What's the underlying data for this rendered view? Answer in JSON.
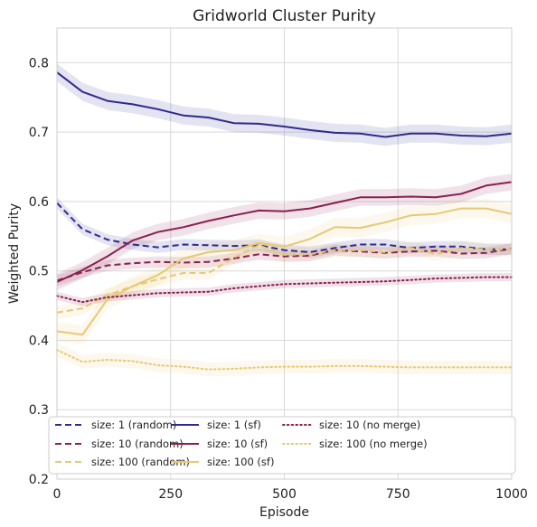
{
  "chart_data": {
    "type": "line",
    "title": "Gridworld Cluster Purity",
    "xlabel": "Episode",
    "ylabel": "Weighted Purity",
    "xlim": [
      0,
      1000
    ],
    "ylim": [
      0.2,
      0.85
    ],
    "xticks": [
      0,
      250,
      500,
      750,
      1000
    ],
    "yticks": [
      0.2,
      0.3,
      0.4,
      0.5,
      0.6,
      0.7,
      0.8
    ],
    "xtick_labels": [
      "0",
      "250",
      "500",
      "750",
      "1000"
    ],
    "ytick_labels": [
      "0.2",
      "0.3",
      "0.4",
      "0.5",
      "0.6",
      "0.7",
      "0.8"
    ],
    "grid": true,
    "legend_position": "bottom",
    "legend_columns": 3,
    "x": [
      0,
      56,
      111,
      167,
      222,
      278,
      333,
      389,
      444,
      500,
      556,
      611,
      667,
      722,
      778,
      833,
      889,
      944,
      1000
    ],
    "series": [
      {
        "name": "size: 1 (random)",
        "color": "#2f2a8f",
        "style": "dashed",
        "values": [
          0.598,
          0.56,
          0.545,
          0.538,
          0.534,
          0.538,
          0.537,
          0.536,
          0.537,
          0.53,
          0.527,
          0.533,
          0.538,
          0.538,
          0.533,
          0.535,
          0.535,
          0.531,
          0.531
        ],
        "band": 0.008
      },
      {
        "name": "size: 10 (random)",
        "color": "#8b1f4f",
        "style": "dashed",
        "values": [
          0.486,
          0.498,
          0.508,
          0.511,
          0.513,
          0.512,
          0.513,
          0.518,
          0.524,
          0.521,
          0.522,
          0.53,
          0.528,
          0.526,
          0.528,
          0.529,
          0.525,
          0.526,
          0.532
        ],
        "band": 0.008
      },
      {
        "name": "size: 100 (random)",
        "color": "#e8c873",
        "style": "dashed",
        "values": [
          0.44,
          0.446,
          0.465,
          0.478,
          0.488,
          0.497,
          0.497,
          0.519,
          0.537,
          0.523,
          0.524,
          0.53,
          0.53,
          0.527,
          0.533,
          0.524,
          0.533,
          0.531,
          0.531
        ],
        "band": 0.01
      },
      {
        "name": "size: 1 (sf)",
        "color": "#2f2a8f",
        "style": "solid",
        "values": [
          0.786,
          0.758,
          0.745,
          0.74,
          0.733,
          0.724,
          0.721,
          0.713,
          0.712,
          0.708,
          0.703,
          0.699,
          0.698,
          0.693,
          0.698,
          0.698,
          0.695,
          0.694,
          0.698
        ],
        "band": 0.013
      },
      {
        "name": "size: 10 (sf)",
        "color": "#8b1f4f",
        "style": "solid",
        "values": [
          0.484,
          0.501,
          0.521,
          0.544,
          0.556,
          0.563,
          0.572,
          0.58,
          0.587,
          0.586,
          0.59,
          0.598,
          0.606,
          0.606,
          0.607,
          0.606,
          0.611,
          0.623,
          0.628
        ],
        "band": 0.012
      },
      {
        "name": "size: 100 (sf)",
        "color": "#e8c873",
        "style": "solid",
        "values": [
          0.413,
          0.408,
          0.459,
          0.478,
          0.494,
          0.518,
          0.527,
          0.53,
          0.54,
          0.535,
          0.546,
          0.563,
          0.562,
          0.57,
          0.58,
          0.582,
          0.59,
          0.59,
          0.582
        ],
        "band": 0.014
      },
      {
        "name": "size: 10 (no merge)",
        "color": "#8b1f4f",
        "style": "dotted",
        "values": [
          0.464,
          0.455,
          0.462,
          0.465,
          0.468,
          0.469,
          0.47,
          0.475,
          0.478,
          0.481,
          0.482,
          0.483,
          0.484,
          0.485,
          0.487,
          0.489,
          0.49,
          0.491,
          0.491
        ],
        "band": 0.006
      },
      {
        "name": "size: 100 (no merge)",
        "color": "#e8c873",
        "style": "dotted",
        "values": [
          0.386,
          0.369,
          0.372,
          0.37,
          0.364,
          0.362,
          0.358,
          0.359,
          0.361,
          0.362,
          0.362,
          0.363,
          0.363,
          0.362,
          0.361,
          0.361,
          0.361,
          0.361,
          0.361
        ],
        "band": 0.01
      }
    ]
  }
}
